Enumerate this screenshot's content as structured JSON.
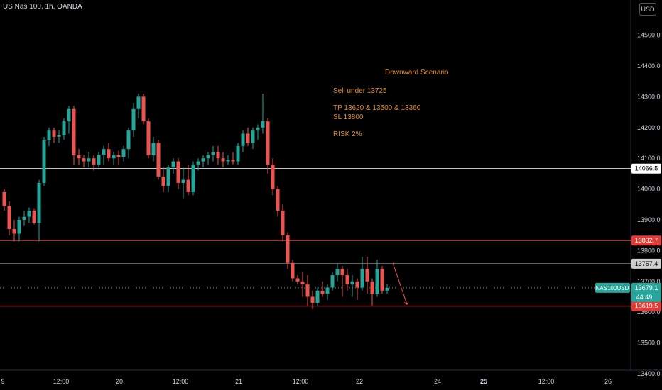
{
  "header": {
    "symbol": "US Nas 100, 1h, OANDA",
    "currency": "USD"
  },
  "annotation": {
    "title": "Downward Scenario",
    "sell": "Sell under 13725",
    "tp": "TP 13620 & 13500 & 13360",
    "sl": "SL 13800",
    "risk": "RISK 2%"
  },
  "colors": {
    "up": "#26a69a",
    "down": "#ef5350",
    "bg": "#000000",
    "hline_white": "#ffffff",
    "hline_red": "#e53935",
    "note": "#e0902a"
  },
  "chart_data": {
    "type": "candlestick",
    "y_axis": {
      "min": 13400,
      "max": 14560,
      "ticks": [
        13400,
        13500,
        13600,
        13700,
        13800,
        13900,
        14000,
        14100,
        14200,
        14300,
        14400,
        14500
      ],
      "labels": [
        "13400.0",
        "13500.0",
        "13600.0",
        "13700.0",
        "13800.0",
        "13900.0",
        "14000.0",
        "14100.0",
        "14200.0",
        "14300.0",
        "14400.0",
        "14500.0"
      ]
    },
    "x_axis": {
      "labels": [
        "9",
        "12:00",
        "20",
        "12:00",
        "21",
        "12:00",
        "22",
        "24",
        "25",
        "12:00",
        "26"
      ]
    },
    "horizontal_levels": [
      {
        "value": 14066.5,
        "label": "14066.5",
        "style": "white"
      },
      {
        "value": 13832.7,
        "label": "13832.7",
        "style": "red"
      },
      {
        "value": 13757.4,
        "label": "13757.4",
        "style": "grey"
      },
      {
        "value": 13619.5,
        "label": "13619.5",
        "style": "red"
      }
    ],
    "current_price": {
      "value": 13679.1,
      "label": "13679.1",
      "countdown": "44:49",
      "symbol": "NAS100USD"
    },
    "candles": [
      [
        13990,
        14000,
        13930,
        13945
      ],
      [
        13945,
        13960,
        13850,
        13870
      ],
      [
        13870,
        13900,
        13830,
        13855
      ],
      [
        13855,
        13910,
        13830,
        13900
      ],
      [
        13900,
        13930,
        13880,
        13910
      ],
      [
        13910,
        13940,
        13890,
        13930
      ],
      [
        13930,
        13935,
        13885,
        13890
      ],
      [
        13890,
        14030,
        13830,
        14020
      ],
      [
        14020,
        14170,
        14010,
        14160
      ],
      [
        14160,
        14200,
        14140,
        14190
      ],
      [
        14190,
        14200,
        14150,
        14170
      ],
      [
        14170,
        14190,
        14150,
        14175
      ],
      [
        14175,
        14230,
        14160,
        14220
      ],
      [
        14220,
        14270,
        14180,
        14260
      ],
      [
        14260,
        14270,
        14080,
        14110
      ],
      [
        14110,
        14130,
        14080,
        14100
      ],
      [
        14100,
        14110,
        14070,
        14090
      ],
      [
        14090,
        14120,
        14070,
        14100
      ],
      [
        14100,
        14110,
        14060,
        14080
      ],
      [
        14080,
        14120,
        14070,
        14110
      ],
      [
        14110,
        14140,
        14080,
        14130
      ],
      [
        14130,
        14150,
        14090,
        14100
      ],
      [
        14100,
        14120,
        14080,
        14110
      ],
      [
        14110,
        14125,
        14080,
        14105
      ],
      [
        14105,
        14140,
        14090,
        14130
      ],
      [
        14130,
        14200,
        14100,
        14190
      ],
      [
        14190,
        14280,
        14170,
        14260
      ],
      [
        14260,
        14310,
        14230,
        14300
      ],
      [
        14300,
        14310,
        14210,
        14220
      ],
      [
        14220,
        14230,
        14100,
        14110
      ],
      [
        14110,
        14170,
        14090,
        14150
      ],
      [
        14150,
        14160,
        14030,
        14040
      ],
      [
        14040,
        14070,
        13990,
        14010
      ],
      [
        14010,
        14080,
        13990,
        14070
      ],
      [
        14070,
        14100,
        14050,
        14090
      ],
      [
        14090,
        14100,
        14000,
        14020
      ],
      [
        14020,
        14070,
        13970,
        14030
      ],
      [
        14030,
        14080,
        13980,
        13990
      ],
      [
        13990,
        14090,
        13980,
        14080
      ],
      [
        14080,
        14100,
        14060,
        14090
      ],
      [
        14090,
        14110,
        14070,
        14100
      ],
      [
        14100,
        14120,
        14080,
        14110
      ],
      [
        14110,
        14140,
        14090,
        14120
      ],
      [
        14120,
        14140,
        14080,
        14100
      ],
      [
        14100,
        14120,
        14070,
        14090
      ],
      [
        14090,
        14110,
        14080,
        14095
      ],
      [
        14095,
        14120,
        14080,
        14090
      ],
      [
        14090,
        14150,
        14080,
        14140
      ],
      [
        14140,
        14190,
        14120,
        14180
      ],
      [
        14180,
        14200,
        14140,
        14150
      ],
      [
        14150,
        14200,
        14130,
        14190
      ],
      [
        14190,
        14210,
        14160,
        14200
      ],
      [
        14200,
        14310,
        14180,
        14220
      ],
      [
        14220,
        14230,
        14050,
        14080
      ],
      [
        14080,
        14100,
        13980,
        14000
      ],
      [
        14000,
        14010,
        13910,
        13930
      ],
      [
        13930,
        13950,
        13830,
        13850
      ],
      [
        13850,
        13860,
        13740,
        13760
      ],
      [
        13760,
        13770,
        13700,
        13710
      ],
      [
        13710,
        13720,
        13690,
        13700
      ],
      [
        13700,
        13730,
        13650,
        13690
      ],
      [
        13690,
        13720,
        13620,
        13650
      ],
      [
        13650,
        13670,
        13610,
        13630
      ],
      [
        13630,
        13680,
        13620,
        13670
      ],
      [
        13670,
        13700,
        13650,
        13660
      ],
      [
        13660,
        13690,
        13640,
        13680
      ],
      [
        13680,
        13730,
        13670,
        13720
      ],
      [
        13720,
        13760,
        13700,
        13740
      ],
      [
        13740,
        13750,
        13650,
        13720
      ],
      [
        13720,
        13740,
        13670,
        13690
      ],
      [
        13690,
        13720,
        13650,
        13700
      ],
      [
        13700,
        13710,
        13640,
        13680
      ],
      [
        13680,
        13780,
        13670,
        13740
      ],
      [
        13740,
        13780,
        13660,
        13700
      ],
      [
        13700,
        13710,
        13620,
        13660
      ],
      [
        13660,
        13770,
        13650,
        13740
      ],
      [
        13740,
        13750,
        13660,
        13670
      ],
      [
        13670,
        13690,
        13660,
        13679
      ]
    ]
  }
}
